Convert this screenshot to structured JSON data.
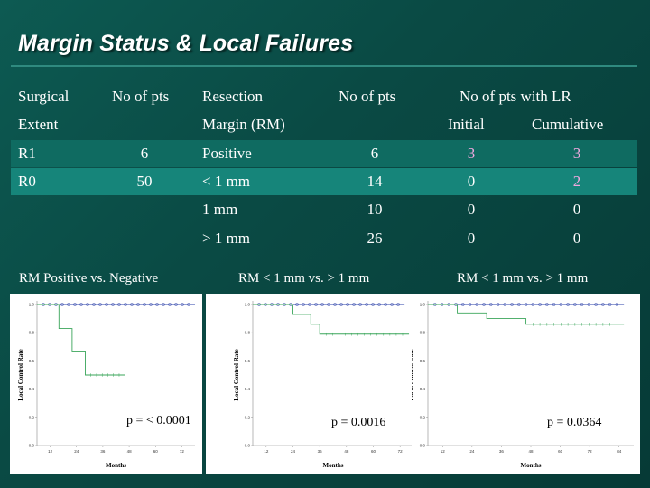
{
  "title": "Margin Status & Local Failures",
  "table": {
    "headers": {
      "surgical_1": "Surgical",
      "surgical_2": "Extent",
      "pts": "No of pts",
      "resection_1": "Resection",
      "resection_2": "Margin (RM)",
      "pts2": "No of pts",
      "lr": "No of pts with LR",
      "initial": "Initial",
      "cumulative": "Cumulative"
    },
    "rows": [
      {
        "extent": "R1",
        "pts": "6",
        "margin": "Positive",
        "pts2": "6",
        "initial": "3",
        "cumulative": "3"
      },
      {
        "extent": "R0",
        "pts": "50",
        "margin": "< 1 mm",
        "pts2": "14",
        "initial": "0",
        "cumulative": "2"
      },
      {
        "extent": "",
        "pts": "",
        "margin": "1 mm",
        "pts2": "10",
        "initial": "0",
        "cumulative": "0"
      },
      {
        "extent": "",
        "pts": "",
        "margin": "> 1 mm",
        "pts2": "26",
        "initial": "0",
        "cumulative": "0"
      }
    ]
  },
  "panels": [
    {
      "title": "RM Positive vs. Negative",
      "p_value": "p = < 0.0001",
      "y_label": "Local Control Rate",
      "x_label": "Months",
      "y_ticks": [
        "1.0",
        "0.8",
        "0.6",
        "0.4",
        "0.2",
        "0.0"
      ],
      "x_ticks": [
        "12",
        "24",
        "36",
        "48",
        "60",
        "72"
      ]
    },
    {
      "title": "RM < 1 mm vs. > 1 mm",
      "p_value": "p = 0.0016",
      "y_label": "Local Control Rate",
      "x_label": "Months",
      "y_ticks": [
        "1.0",
        "0.8",
        "0.6",
        "0.4",
        "0.2",
        "0.0"
      ],
      "x_ticks": [
        "12",
        "24",
        "36",
        "48",
        "60",
        "72"
      ]
    },
    {
      "title": "RM < 1 mm vs. > 1 mm",
      "p_value": "p = 0.0364",
      "y_label": "Local Control Rate",
      "x_label": "Months",
      "y_ticks": [
        "1.0",
        "0.8",
        "0.6",
        "0.4",
        "0.2",
        "0.0"
      ],
      "x_ticks": [
        "12",
        "24",
        "36",
        "48",
        "60",
        "72",
        "84"
      ]
    }
  ],
  "chart_data": [
    {
      "type": "line",
      "xlabel": "Months",
      "ylabel": "Local Control Rate",
      "xlim": [
        0,
        72
      ],
      "ylim": [
        0,
        1.0
      ],
      "series": [
        {
          "color": "#2a3fa8",
          "steps": [
            [
              0,
              1.0
            ],
            [
              72,
              1.0
            ]
          ]
        },
        {
          "color": "#3aa55a",
          "steps": [
            [
              0,
              1.0
            ],
            [
              10,
              0.83
            ],
            [
              16,
              0.83
            ],
            [
              16,
              0.67
            ],
            [
              22,
              0.67
            ],
            [
              22,
              0.5
            ],
            [
              40,
              0.5
            ]
          ]
        }
      ]
    },
    {
      "type": "line",
      "xlabel": "Months",
      "ylabel": "Local Control Rate",
      "xlim": [
        0,
        72
      ],
      "ylim": [
        0,
        1.0
      ],
      "series": [
        {
          "color": "#2a3fa8",
          "steps": [
            [
              0,
              1.0
            ],
            [
              68,
              1.0
            ]
          ]
        },
        {
          "color": "#3aa55a",
          "steps": [
            [
              0,
              1.0
            ],
            [
              18,
              0.93
            ],
            [
              26,
              0.93
            ],
            [
              26,
              0.86
            ],
            [
              30,
              0.86
            ],
            [
              30,
              0.79
            ],
            [
              70,
              0.79
            ]
          ]
        }
      ]
    },
    {
      "type": "line",
      "xlabel": "Months",
      "ylabel": "Local Control Rate",
      "xlim": [
        0,
        84
      ],
      "ylim": [
        0,
        1.0
      ],
      "series": [
        {
          "color": "#2a3fa8",
          "steps": [
            [
              0,
              1.0
            ],
            [
              80,
              1.0
            ]
          ]
        },
        {
          "color": "#3aa55a",
          "steps": [
            [
              0,
              1.0
            ],
            [
              12,
              0.94
            ],
            [
              24,
              0.94
            ],
            [
              24,
              0.9
            ],
            [
              40,
              0.9
            ],
            [
              40,
              0.86
            ],
            [
              80,
              0.86
            ]
          ]
        }
      ]
    }
  ]
}
